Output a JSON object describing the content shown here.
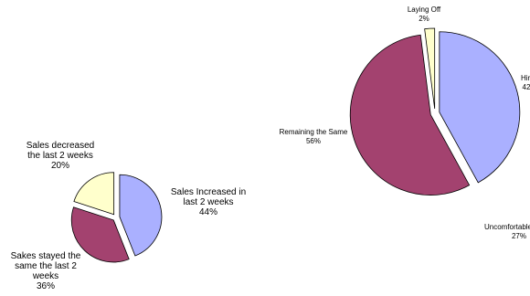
{
  "chart_data": [
    {
      "type": "pie",
      "categories": [
        "Sales Increased in last 2 weeks",
        "Sakes stayed the same the last 2 weeks",
        "Sales decreased the last 2 weeks"
      ],
      "values": [
        44,
        36,
        20
      ],
      "value_labels": [
        "44%",
        "36%",
        "20%"
      ],
      "colors": [
        "#aab0ff",
        "#a3426f",
        "#ffffcc"
      ]
    },
    {
      "type": "pie",
      "categories": [
        "Hiri",
        "Remaining the Same",
        "Laying Off"
      ],
      "values": [
        42,
        56,
        2
      ],
      "value_labels": [
        "42",
        "56%",
        "2%"
      ],
      "colors": [
        "#aab0ff",
        "#a3426f",
        "#ffffcc"
      ],
      "annotations": [
        "Uncomfortable w",
        "27%"
      ]
    }
  ]
}
